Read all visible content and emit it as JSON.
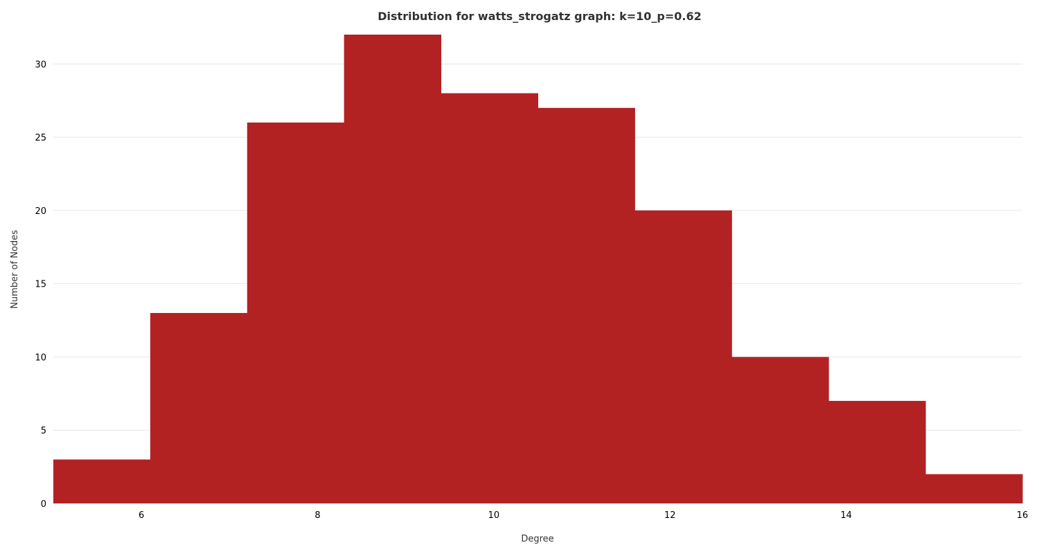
{
  "chart_data": {
    "type": "bar",
    "subtype": "histogram",
    "title": "Distribution for watts_strogatz graph: k=10_p=0.62",
    "xlabel": "Degree",
    "ylabel": "Number of Nodes",
    "bin_edges": [
      5,
      6.1,
      7.2,
      8.3,
      9.4,
      10.5,
      11.6,
      12.7,
      13.8,
      14.9,
      16
    ],
    "values": [
      3,
      13,
      26,
      32,
      28,
      27,
      20,
      10,
      7,
      2
    ],
    "xlim": [
      5,
      16
    ],
    "ylim": [
      0,
      32
    ],
    "xticks": [
      6,
      8,
      10,
      12,
      14,
      16
    ],
    "yticks": [
      0,
      5,
      10,
      15,
      20,
      25,
      30
    ],
    "grid": "horizontal",
    "bar_color": "#b22222"
  }
}
